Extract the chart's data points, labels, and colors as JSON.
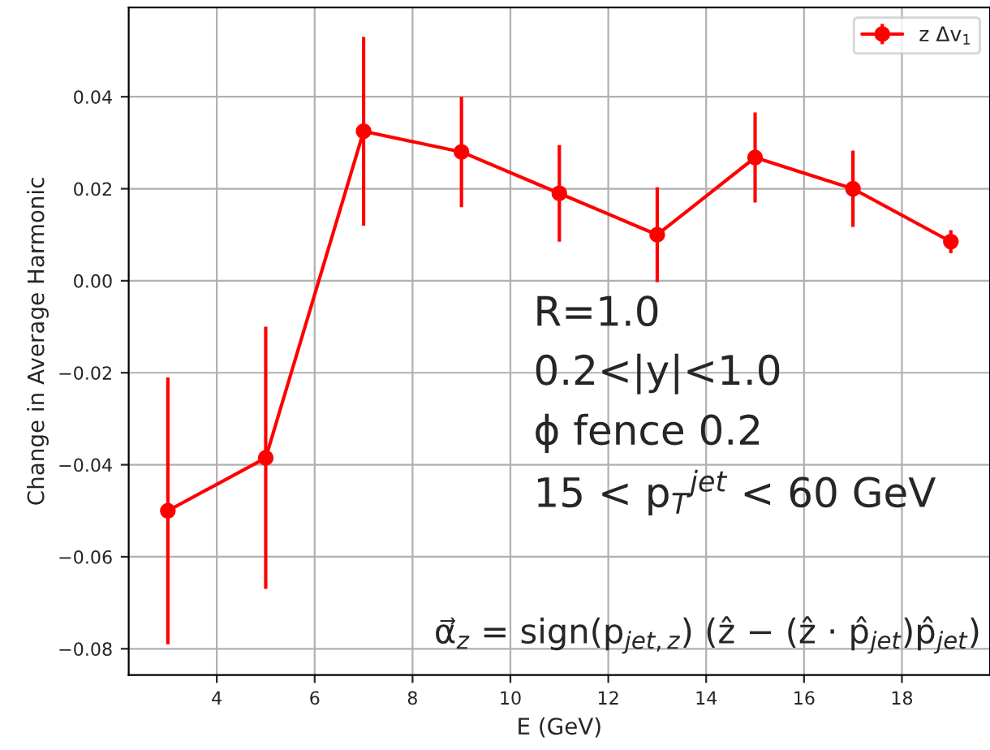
{
  "chart_data": {
    "type": "line",
    "xlabel": "E (GeV)",
    "ylabel": "Change in Average Harmonic",
    "x": [
      3,
      5,
      7,
      9,
      11,
      13,
      15,
      17,
      19
    ],
    "series": [
      {
        "name": "z Δv$_{1}$",
        "color": "#ff0000",
        "values": [
          -0.05,
          -0.0385,
          0.0325,
          0.028,
          0.019,
          0.01,
          0.0268,
          0.02,
          0.0085
        ],
        "errors": [
          0.029,
          0.0285,
          0.0205,
          0.012,
          0.0105,
          0.0103,
          0.0098,
          0.0083,
          0.0025
        ]
      }
    ],
    "xlim": [
      2.2,
      19.8
    ],
    "ylim": [
      -0.0857,
      0.0594
    ],
    "xticks": [
      4,
      6,
      8,
      10,
      12,
      14,
      16,
      18
    ],
    "yticks": [
      {
        "value": -0.08,
        "label": "−0.08"
      },
      {
        "value": -0.06,
        "label": "−0.06"
      },
      {
        "value": -0.04,
        "label": "−0.04"
      },
      {
        "value": -0.02,
        "label": "−0.02"
      },
      {
        "value": 0.0,
        "label": "0.00"
      },
      {
        "value": 0.02,
        "label": "0.02"
      },
      {
        "value": 0.04,
        "label": "0.04"
      }
    ],
    "grid": true,
    "legend": "top right",
    "marker": "circle",
    "line_style": "solid",
    "annotations": [
      "R=1.0",
      "0.2<|y|<1.0",
      "ϕ fence 0.2",
      "15 < p$_{T}$$^{jet}$ < 60 GeV",
      "α⃗$_{z}$ = sign(p$_{jet,z}$) (ẑ − (ẑ · p̂$_{jet}$)p̂$_{jet}$)"
    ]
  }
}
